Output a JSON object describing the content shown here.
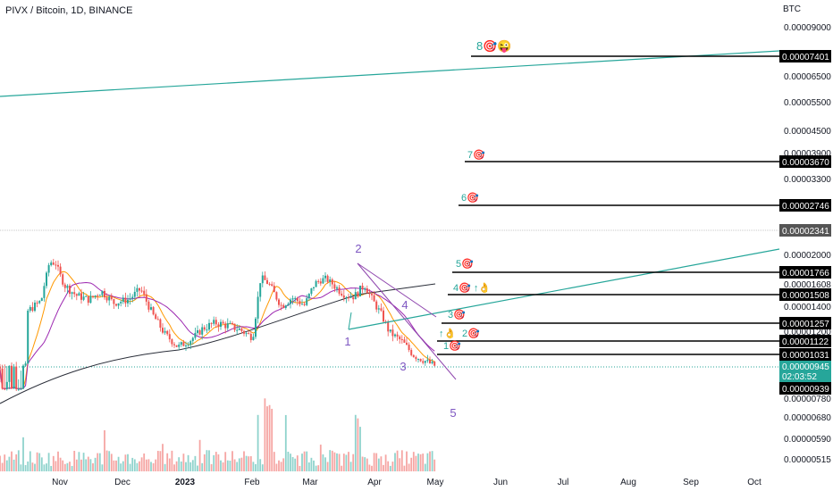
{
  "header": {
    "title": "PIVX / Bitcoin, 1D, BINANCE",
    "currency": "BTC"
  },
  "colors": {
    "background": "#ffffff",
    "candle_up": "#26a69a",
    "candle_down": "#ef5350",
    "vol_up": "#8fd3cc",
    "vol_down": "#f6a5a3",
    "ma_slow": "#2a2e39",
    "ma_mid": "#9c27b0",
    "ma_fast": "#ff9800",
    "trendline": "#26a69a",
    "wedge": "#8e44ad",
    "label": "#7e57c2",
    "target_label": "#26a69a",
    "level_badge": "#000000",
    "last_price_badge": "#26a69a"
  },
  "chart_data": {
    "type": "candlestick",
    "title": "PIVX / Bitcoin, 1D, BINANCE",
    "y_unit": "BTC",
    "y_scale": "log",
    "ylim": [
      4.9e-06,
      9.8e-06
    ],
    "x_tick_labels": [
      "Nov",
      "Dec",
      "2023",
      "Feb",
      "Mar",
      "Apr",
      "May",
      "Jun",
      "Jul",
      "Aug",
      "Sep",
      "Oct"
    ],
    "y_tick_labels": [
      "0.00009000",
      "0.00006500",
      "0.00005500",
      "0.00004500",
      "0.00003900",
      "0.00003300",
      "0.00002000",
      "0.00001608",
      "0.00001400",
      "0.00001200",
      "0.00000780",
      "0.00000680",
      "0.00000590",
      "0.00000515"
    ],
    "target_levels": [
      {
        "label": "8",
        "value": 7.401e-05
      },
      {
        "label": "7",
        "value": 3.67e-05
      },
      {
        "label": "6",
        "value": 2.746e-05
      },
      {
        "label": "5",
        "value": 1.766e-05
      },
      {
        "label": "4",
        "value": 1.508e-05
      },
      {
        "label": "3",
        "value": 1.257e-05
      },
      {
        "label": "2",
        "value": 1.122e-05
      },
      {
        "label": "1",
        "value": 1.031e-05
      }
    ],
    "reference_level": 2.341e-05,
    "last_price": 9.45e-06,
    "countdown": "02:03:52",
    "low_marker": 9.39e-06,
    "wave_labels": [
      "1",
      "2",
      "3",
      "4",
      "5"
    ],
    "close_path": [
      [
        "2022-10-15",
        1.35e-05
      ],
      [
        "2022-10-22",
        1.45e-05
      ],
      [
        "2022-10-26",
        1.9e-05
      ],
      [
        "2022-10-29",
        1.88e-05
      ],
      [
        "2022-11-02",
        1.6e-05
      ],
      [
        "2022-11-08",
        1.5e-05
      ],
      [
        "2022-11-14",
        1.46e-05
      ],
      [
        "2022-11-20",
        1.54e-05
      ],
      [
        "2022-11-26",
        1.43e-05
      ],
      [
        "2022-12-03",
        1.46e-05
      ],
      [
        "2022-12-09",
        1.56e-05
      ],
      [
        "2022-12-15",
        1.32e-05
      ],
      [
        "2022-12-21",
        1.17e-05
      ],
      [
        "2022-12-27",
        1.08e-05
      ],
      [
        "2023-01-02",
        1.13e-05
      ],
      [
        "2023-01-08",
        1.22e-05
      ],
      [
        "2023-01-14",
        1.26e-05
      ],
      [
        "2023-01-20",
        1.24e-05
      ],
      [
        "2023-01-26",
        1.21e-05
      ],
      [
        "2023-02-01",
        1.15e-05
      ],
      [
        "2023-02-05",
        1.7e-05
      ],
      [
        "2023-02-09",
        1.6e-05
      ],
      [
        "2023-02-15",
        1.4e-05
      ],
      [
        "2023-02-20",
        1.48e-05
      ],
      [
        "2023-02-26",
        1.41e-05
      ],
      [
        "2023-03-03",
        1.62e-05
      ],
      [
        "2023-03-08",
        1.68e-05
      ],
      [
        "2023-03-14",
        1.56e-05
      ],
      [
        "2023-03-18",
        1.5e-05
      ],
      [
        "2023-03-22",
        1.49e-05
      ],
      [
        "2023-03-27",
        1.6e-05
      ],
      [
        "2023-03-31",
        1.45e-05
      ],
      [
        "2023-04-04",
        1.33e-05
      ],
      [
        "2023-04-08",
        1.19e-05
      ],
      [
        "2023-04-14",
        1.12e-05
      ],
      [
        "2023-04-20",
        1.02e-05
      ],
      [
        "2023-04-26",
        9.8e-06
      ],
      [
        "2023-05-01",
        9.45e-06
      ]
    ]
  },
  "annotations": {
    "target_prefix": "🎯",
    "target_8_extra": "😜",
    "up_marker": "↑👌",
    "target_2_prefix": "↑👌 2"
  }
}
